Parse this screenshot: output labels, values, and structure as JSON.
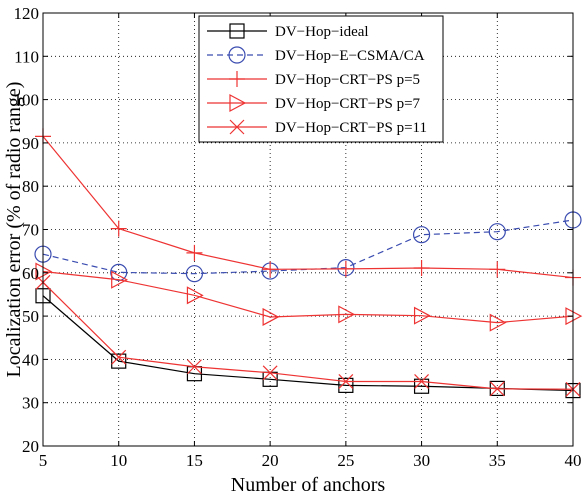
{
  "chart_data": {
    "type": "line",
    "title": "",
    "xlabel": "Number of anchors",
    "ylabel": "Localization error  (% of radio range)",
    "x": [
      5,
      10,
      15,
      20,
      25,
      30,
      35,
      40
    ],
    "xlim": [
      5,
      40
    ],
    "ylim": [
      20,
      120
    ],
    "xticks": [
      "5",
      "10",
      "15",
      "20",
      "25",
      "30",
      "35",
      "40"
    ],
    "yticks": [
      "20",
      "30",
      "40",
      "50",
      "60",
      "70",
      "80",
      "90",
      "100",
      "110",
      "120"
    ],
    "grid": true,
    "legend_position": "top-right",
    "series": [
      {
        "name": "DV−Hop−ideal",
        "color": "#000000",
        "dash": "solid",
        "marker": "square",
        "values": [
          54.7,
          39.6,
          36.7,
          35.4,
          34.0,
          33.8,
          33.3,
          32.8
        ]
      },
      {
        "name": "DV−Hop−E−CSMA/CA",
        "color": "#3a4cb0",
        "dash": "dashed",
        "marker": "circle",
        "values": [
          64.3,
          60.1,
          59.8,
          60.4,
          61.2,
          68.8,
          69.5,
          72.2
        ]
      },
      {
        "name": "DV−Hop−CRT−PS p=5",
        "color": "#ee3333",
        "dash": "solid",
        "marker": "plus",
        "values": [
          91.5,
          70.2,
          64.6,
          60.8,
          60.9,
          61.1,
          60.8,
          58.9
        ]
      },
      {
        "name": "DV−Hop−CRT−PS p=7",
        "color": "#ee3333",
        "dash": "solid",
        "marker": "triangle-right",
        "values": [
          60.3,
          58.4,
          54.8,
          49.8,
          50.4,
          50.1,
          48.5,
          50.0
        ]
      },
      {
        "name": "DV−Hop−CRT−PS p=11",
        "color": "#ee3333",
        "dash": "solid",
        "marker": "x",
        "values": [
          57.8,
          40.5,
          38.3,
          36.9,
          34.9,
          34.9,
          33.2,
          33.1
        ]
      }
    ]
  }
}
